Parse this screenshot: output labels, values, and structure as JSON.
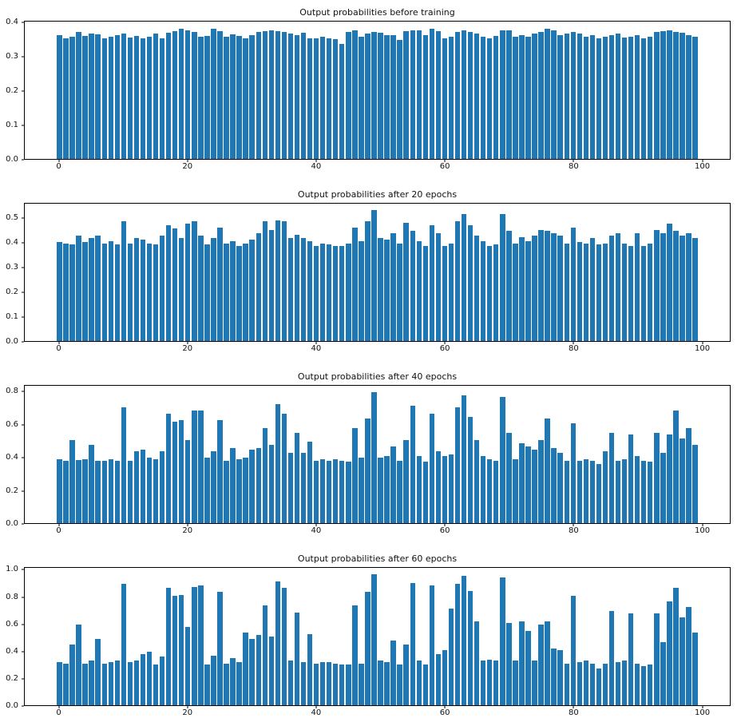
{
  "figure": {
    "background": "#ffffff"
  },
  "colors": {
    "bar": "#1f77b4",
    "spine": "#000000",
    "text": "#111111"
  },
  "chart_data": [
    {
      "type": "bar",
      "title": "Output probabilities before training",
      "xlabel": "",
      "ylabel": "",
      "xticks": [
        0,
        20,
        40,
        60,
        80,
        100
      ],
      "yticks": [
        0.0,
        0.1,
        0.2,
        0.3,
        0.4
      ],
      "xlim": [
        -5.4,
        104.4
      ],
      "ylim": [
        0,
        0.405
      ],
      "bar_width": 0.8,
      "legend": "none",
      "grid": false,
      "values": [
        0.365,
        0.355,
        0.36,
        0.375,
        0.362,
        0.37,
        0.368,
        0.356,
        0.36,
        0.365,
        0.37,
        0.358,
        0.362,
        0.356,
        0.36,
        0.37,
        0.355,
        0.372,
        0.376,
        0.385,
        0.38,
        0.375,
        0.36,
        0.362,
        0.385,
        0.376,
        0.36,
        0.368,
        0.362,
        0.356,
        0.366,
        0.375,
        0.377,
        0.38,
        0.376,
        0.374,
        0.37,
        0.365,
        0.372,
        0.356,
        0.355,
        0.36,
        0.356,
        0.354,
        0.34,
        0.375,
        0.38,
        0.36,
        0.37,
        0.375,
        0.372,
        0.366,
        0.364,
        0.35,
        0.376,
        0.38,
        0.378,
        0.365,
        0.385,
        0.376,
        0.355,
        0.36,
        0.375,
        0.38,
        0.374,
        0.37,
        0.36,
        0.356,
        0.362,
        0.38,
        0.38,
        0.36,
        0.366,
        0.36,
        0.37,
        0.374,
        0.385,
        0.38,
        0.365,
        0.37,
        0.375,
        0.37,
        0.36,
        0.365,
        0.356,
        0.36,
        0.366,
        0.37,
        0.358,
        0.36,
        0.365,
        0.356,
        0.36,
        0.375,
        0.376,
        0.38,
        0.375,
        0.372,
        0.365,
        0.36
      ]
    },
    {
      "type": "bar",
      "title": "Output probabilities after 20 epochs",
      "xlabel": "",
      "ylabel": "",
      "xticks": [
        0,
        20,
        40,
        60,
        80,
        100
      ],
      "yticks": [
        0.0,
        0.1,
        0.2,
        0.3,
        0.4,
        0.5
      ],
      "xlim": [
        -5.4,
        104.4
      ],
      "ylim": [
        0,
        0.562
      ],
      "bar_width": 0.8,
      "legend": "none",
      "grid": false,
      "values": [
        0.405,
        0.4,
        0.395,
        0.43,
        0.405,
        0.42,
        0.43,
        0.4,
        0.41,
        0.395,
        0.49,
        0.4,
        0.42,
        0.415,
        0.4,
        0.395,
        0.43,
        0.475,
        0.46,
        0.42,
        0.48,
        0.49,
        0.43,
        0.395,
        0.42,
        0.465,
        0.4,
        0.41,
        0.39,
        0.4,
        0.415,
        0.44,
        0.49,
        0.455,
        0.495,
        0.49,
        0.42,
        0.435,
        0.42,
        0.41,
        0.39,
        0.4,
        0.395,
        0.39,
        0.39,
        0.4,
        0.465,
        0.41,
        0.49,
        0.535,
        0.42,
        0.415,
        0.44,
        0.4,
        0.485,
        0.45,
        0.41,
        0.39,
        0.475,
        0.44,
        0.39,
        0.4,
        0.49,
        0.52,
        0.475,
        0.43,
        0.41,
        0.39,
        0.395,
        0.52,
        0.45,
        0.4,
        0.425,
        0.41,
        0.43,
        0.455,
        0.45,
        0.44,
        0.43,
        0.4,
        0.465,
        0.405,
        0.4,
        0.42,
        0.395,
        0.4,
        0.43,
        0.44,
        0.4,
        0.39,
        0.44,
        0.39,
        0.4,
        0.455,
        0.44,
        0.48,
        0.45,
        0.43,
        0.44,
        0.42
      ]
    },
    {
      "type": "bar",
      "title": "Output probabilities after 40 epochs",
      "xlabel": "",
      "ylabel": "",
      "xticks": [
        0,
        20,
        40,
        60,
        80,
        100
      ],
      "yticks": [
        0.0,
        0.2,
        0.4,
        0.6,
        0.8
      ],
      "xlim": [
        -5.4,
        104.4
      ],
      "ylim": [
        0,
        0.84
      ],
      "bar_width": 0.8,
      "legend": "none",
      "grid": false,
      "values": [
        0.39,
        0.38,
        0.51,
        0.385,
        0.39,
        0.48,
        0.38,
        0.382,
        0.39,
        0.38,
        0.71,
        0.38,
        0.44,
        0.45,
        0.4,
        0.39,
        0.44,
        0.67,
        0.62,
        0.63,
        0.51,
        0.69,
        0.69,
        0.4,
        0.44,
        0.63,
        0.38,
        0.46,
        0.39,
        0.4,
        0.45,
        0.46,
        0.58,
        0.48,
        0.73,
        0.67,
        0.43,
        0.55,
        0.43,
        0.5,
        0.38,
        0.39,
        0.38,
        0.39,
        0.38,
        0.375,
        0.58,
        0.4,
        0.64,
        0.8,
        0.4,
        0.41,
        0.47,
        0.38,
        0.51,
        0.72,
        0.41,
        0.375,
        0.67,
        0.44,
        0.41,
        0.42,
        0.71,
        0.78,
        0.65,
        0.51,
        0.41,
        0.39,
        0.38,
        0.77,
        0.55,
        0.39,
        0.49,
        0.47,
        0.45,
        0.51,
        0.64,
        0.46,
        0.43,
        0.38,
        0.61,
        0.38,
        0.39,
        0.38,
        0.36,
        0.44,
        0.55,
        0.38,
        0.39,
        0.54,
        0.41,
        0.38,
        0.375,
        0.55,
        0.43,
        0.54,
        0.69,
        0.52,
        0.58,
        0.48
      ]
    },
    {
      "type": "bar",
      "title": "Output probabilities after 60 epochs",
      "xlabel": "",
      "ylabel": "",
      "xticks": [
        0,
        20,
        40,
        60,
        80,
        100
      ],
      "yticks": [
        0.0,
        0.2,
        0.4,
        0.6,
        0.8,
        1.0
      ],
      "xlim": [
        -5.4,
        104.4
      ],
      "ylim": [
        0,
        1.02
      ],
      "bar_width": 0.8,
      "legend": "none",
      "grid": false,
      "values": [
        0.32,
        0.31,
        0.45,
        0.6,
        0.31,
        0.33,
        0.49,
        0.31,
        0.32,
        0.33,
        0.9,
        0.32,
        0.33,
        0.38,
        0.4,
        0.3,
        0.36,
        0.87,
        0.81,
        0.82,
        0.58,
        0.88,
        0.89,
        0.3,
        0.37,
        0.84,
        0.31,
        0.35,
        0.32,
        0.54,
        0.49,
        0.52,
        0.74,
        0.51,
        0.92,
        0.87,
        0.33,
        0.69,
        0.32,
        0.53,
        0.31,
        0.32,
        0.32,
        0.31,
        0.3,
        0.3,
        0.74,
        0.31,
        0.84,
        0.97,
        0.33,
        0.32,
        0.48,
        0.3,
        0.45,
        0.91,
        0.33,
        0.3,
        0.89,
        0.38,
        0.41,
        0.72,
        0.9,
        0.96,
        0.85,
        0.62,
        0.33,
        0.34,
        0.33,
        0.95,
        0.61,
        0.33,
        0.62,
        0.55,
        0.33,
        0.6,
        0.62,
        0.42,
        0.41,
        0.31,
        0.81,
        0.32,
        0.33,
        0.31,
        0.27,
        0.31,
        0.7,
        0.32,
        0.33,
        0.68,
        0.31,
        0.29,
        0.3,
        0.68,
        0.47,
        0.77,
        0.87,
        0.65,
        0.73,
        0.54
      ]
    }
  ]
}
